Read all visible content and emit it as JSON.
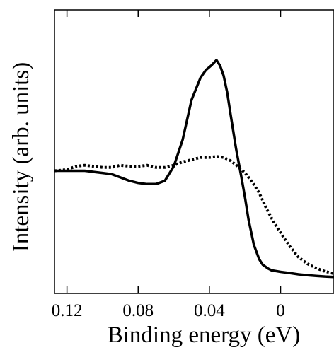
{
  "chart_data": {
    "type": "line",
    "title": "",
    "xlabel": "Binding energy (eV)",
    "ylabel": "Intensity (arb. units)",
    "x_reversed": true,
    "xlim": [
      0.127,
      -0.03
    ],
    "ylim": [
      0,
      1
    ],
    "x_ticks": [
      0.12,
      0.08,
      0.04,
      0
    ],
    "x_tick_labels": [
      "0.12",
      "0.08",
      "0.04",
      "0"
    ],
    "y_ticks_labeled": false,
    "grid": false,
    "series": [
      {
        "style": "solid",
        "color": "#000000",
        "x": [
          0.127,
          0.12,
          0.11,
          0.105,
          0.1,
          0.095,
          0.09,
          0.085,
          0.08,
          0.075,
          0.07,
          0.065,
          0.06,
          0.055,
          0.05,
          0.045,
          0.042,
          0.039,
          0.036,
          0.034,
          0.032,
          0.03,
          0.028,
          0.025,
          0.022,
          0.02,
          0.018,
          0.015,
          0.012,
          0.01,
          0.007,
          0.005,
          0.002,
          0,
          -0.005,
          -0.01,
          -0.015,
          -0.02,
          -0.025,
          -0.03
        ],
        "y": [
          0.5,
          0.5,
          0.5,
          0.495,
          0.49,
          0.485,
          0.47,
          0.455,
          0.445,
          0.44,
          0.44,
          0.455,
          0.52,
          0.64,
          0.82,
          0.92,
          0.955,
          0.975,
          1.0,
          0.975,
          0.93,
          0.855,
          0.75,
          0.6,
          0.47,
          0.38,
          0.28,
          0.165,
          0.1,
          0.075,
          0.058,
          0.05,
          0.046,
          0.043,
          0.038,
          0.032,
          0.028,
          0.025,
          0.022,
          0.02
        ]
      },
      {
        "style": "dotted",
        "color": "#000000",
        "x": [
          0.127,
          0.12,
          0.115,
          0.11,
          0.105,
          0.1,
          0.095,
          0.09,
          0.085,
          0.08,
          0.075,
          0.07,
          0.065,
          0.06,
          0.055,
          0.05,
          0.045,
          0.04,
          0.036,
          0.032,
          0.028,
          0.024,
          0.02,
          0.016,
          0.012,
          0.008,
          0.004,
          0,
          -0.005,
          -0.01,
          -0.015,
          -0.02,
          -0.025,
          -0.03
        ],
        "y": [
          0.5,
          0.505,
          0.52,
          0.525,
          0.52,
          0.515,
          0.515,
          0.525,
          0.52,
          0.52,
          0.525,
          0.515,
          0.515,
          0.525,
          0.54,
          0.55,
          0.56,
          0.56,
          0.565,
          0.56,
          0.545,
          0.52,
          0.49,
          0.45,
          0.4,
          0.33,
          0.27,
          0.22,
          0.16,
          0.11,
          0.08,
          0.06,
          0.045,
          0.035
        ]
      }
    ]
  }
}
